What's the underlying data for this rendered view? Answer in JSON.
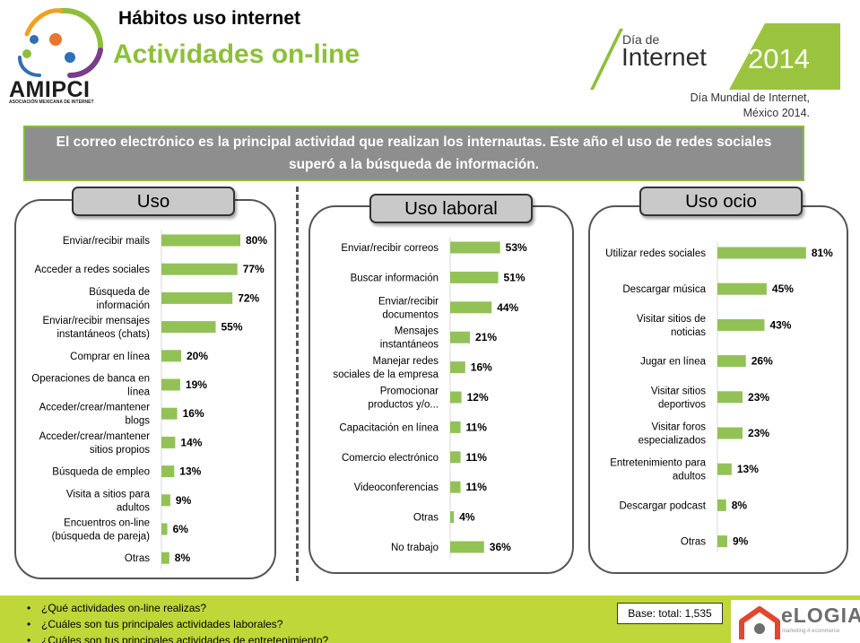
{
  "header": {
    "logo_text": "AMIPCI",
    "logo_subtext": "ASOCIACIÓN MEXICANA DE INTERNET",
    "title": "Hábitos uso internet",
    "subtitle": "Actividades on-line",
    "event_small": "Día de",
    "event_big": "Internet",
    "event_year": "2014",
    "event_caption_line1": "Día Mundial de Internet,",
    "event_caption_line2": "México 2014."
  },
  "banner": {
    "text": "El correo electrónico es la principal actividad que realizan los internautas. Este año el uso de redes sociales superó a la búsqueda de información."
  },
  "colors": {
    "bar": "#92c256",
    "accent_green": "#86bd38",
    "footer": "#c0d73a",
    "brand_red": "#e2472f"
  },
  "chart_data": [
    {
      "type": "bar",
      "title": "Uso",
      "categories": [
        [
          "Enviar/recibir mails"
        ],
        [
          "Acceder a redes sociales"
        ],
        [
          "Búsqueda de",
          "información"
        ],
        [
          "Enviar/recibir mensajes",
          "instantáneos (chats)"
        ],
        [
          "Comprar en línea"
        ],
        [
          "Operaciones de banca en",
          "línea"
        ],
        [
          "Acceder/crear/mantener",
          "blogs"
        ],
        [
          "Acceder/crear/mantener",
          "sitios propios"
        ],
        [
          "Búsqueda de empleo"
        ],
        [
          "Visita a sitios para",
          "adultos"
        ],
        [
          "Encuentros on-line",
          "(búsqueda de pareja)"
        ],
        [
          "Otras"
        ]
      ],
      "values": [
        80,
        77,
        72,
        55,
        20,
        19,
        16,
        14,
        13,
        9,
        6,
        8
      ],
      "value_labels": [
        "80%",
        "77%",
        "72%",
        "55%",
        "20%",
        "19%",
        "16%",
        "14%",
        "13%",
        "9%",
        "6%",
        "8%"
      ],
      "unit": "%"
    },
    {
      "type": "bar",
      "title": "Uso laboral",
      "categories": [
        [
          "Enviar/recibir correos"
        ],
        [
          "Buscar información"
        ],
        [
          "Enviar/recibir",
          "documentos"
        ],
        [
          "Mensajes",
          "instantáneos"
        ],
        [
          "Manejar redes",
          "sociales de la empresa"
        ],
        [
          "Promocionar",
          "productos y/o..."
        ],
        [
          "Capacitación en línea"
        ],
        [
          "Comercio electrónico"
        ],
        [
          "Videoconferencias"
        ],
        [
          "Otras"
        ],
        [
          "No trabajo"
        ]
      ],
      "values": [
        53,
        51,
        44,
        21,
        16,
        12,
        11,
        11,
        11,
        4,
        36
      ],
      "value_labels": [
        "53%",
        "51%",
        "44%",
        "21%",
        "16%",
        "12%",
        "11%",
        "11%",
        "11%",
        "4%",
        "36%"
      ],
      "unit": "%"
    },
    {
      "type": "bar",
      "title": "Uso ocio",
      "categories": [
        [
          "Utilizar redes sociales"
        ],
        [
          "Descargar música"
        ],
        [
          "Visitar sitios de",
          "noticias"
        ],
        [
          "Jugar en línea"
        ],
        [
          "Visitar sitios",
          "deportivos"
        ],
        [
          "Visitar foros",
          "especializados"
        ],
        [
          "Entretenimiento para",
          "adultos"
        ],
        [
          "Descargar podcast"
        ],
        [
          "Otras"
        ]
      ],
      "values": [
        81,
        45,
        43,
        26,
        23,
        23,
        13,
        8,
        9
      ],
      "value_labels": [
        "81%",
        "45%",
        "43%",
        "26%",
        "23%",
        "23%",
        "13%",
        "8%",
        "9%"
      ],
      "unit": "%"
    }
  ],
  "footer": {
    "questions": [
      "¿Qué actividades on-line realizas?",
      "¿Cuáles son tus principales actividades laborales?",
      "¿Cuáles son tus principales actividades de entretenimiento?"
    ],
    "base": "Base: total: 1,535",
    "brand_name": "eLOGIA",
    "brand_tagline": "marketing 4 ecommerce"
  }
}
